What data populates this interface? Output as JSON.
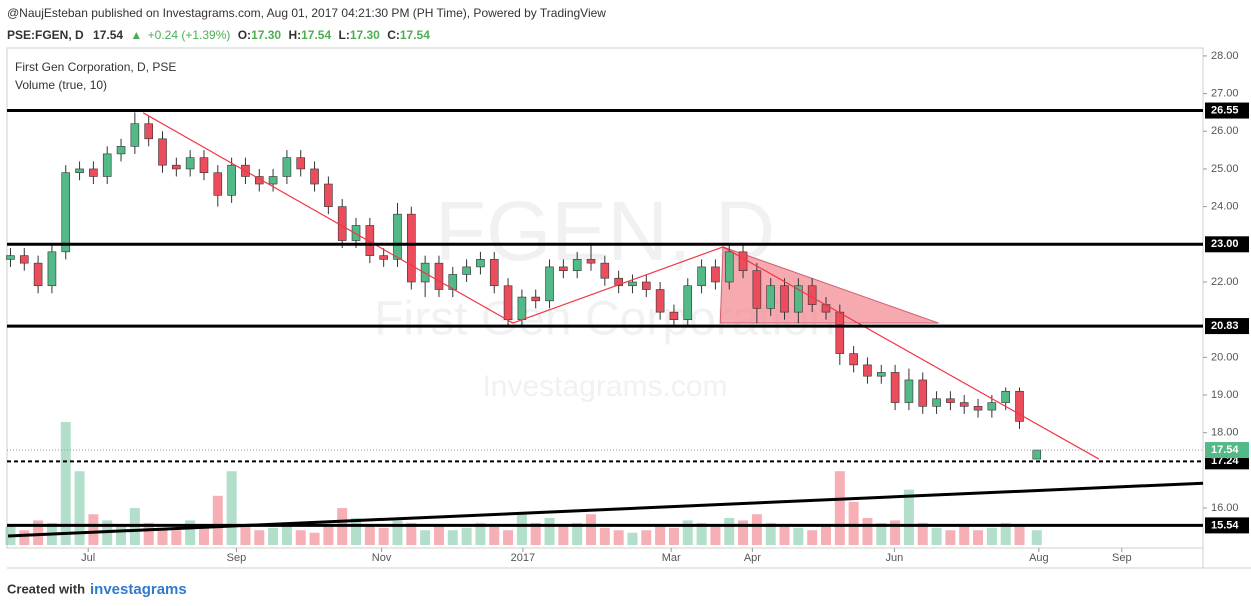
{
  "header": {
    "byline": "@NaujEsteban published on Investagrams.com, Aug 01, 2017 04:21:30 PM (PH Time), Powered by TradingView",
    "symbol": "PSE:FGEN, D",
    "last": "17.54",
    "arrow": "▲",
    "change": "+0.24 (+1.39%)",
    "ohlc": [
      {
        "label": "O:",
        "value": "17.30"
      },
      {
        "label": "H:",
        "value": "17.54"
      },
      {
        "label": "L:",
        "value": "17.30"
      },
      {
        "label": "C:",
        "value": "17.54"
      }
    ]
  },
  "chart_data": {
    "type": "candlestick",
    "legend": [
      "First Gen Corporation, D, PSE",
      "Volume (true, 10)"
    ],
    "watermark": {
      "symbol": "FGEN, D",
      "name": "First Gen Corporation",
      "site": "Investagrams.com"
    },
    "up_color": "#53b987",
    "down_color": "#eb4d5c",
    "candles": {
      "x": [
        1,
        5,
        9,
        13,
        17,
        21,
        25,
        29,
        33,
        37,
        41,
        45,
        49,
        53,
        57,
        61,
        65,
        69,
        73,
        77,
        81,
        85,
        89,
        93,
        97,
        101,
        105,
        109,
        113,
        117,
        121,
        125,
        129,
        133,
        137,
        141,
        145,
        149,
        153,
        157,
        161,
        165,
        169,
        173,
        177,
        181,
        185,
        189,
        193,
        197,
        201,
        205,
        209,
        213,
        217,
        221,
        225,
        229,
        233,
        237,
        241,
        245,
        249,
        253,
        257,
        261,
        265,
        269,
        273,
        277,
        281,
        285,
        289,
        293,
        298
      ],
      "open": [
        22.6,
        22.7,
        22.5,
        21.9,
        22.8,
        24.9,
        25.0,
        24.8,
        25.4,
        25.6,
        26.2,
        25.8,
        25.1,
        25.0,
        25.3,
        24.9,
        24.3,
        25.1,
        24.8,
        24.6,
        24.8,
        25.3,
        25.0,
        24.6,
        24.0,
        23.1,
        23.5,
        22.7,
        22.6,
        23.8,
        22.0,
        22.5,
        21.8,
        22.2,
        22.4,
        22.6,
        21.9,
        21.0,
        21.6,
        21.5,
        22.4,
        22.3,
        22.6,
        22.5,
        22.1,
        21.9,
        22.0,
        21.8,
        21.2,
        21.0,
        21.9,
        22.4,
        22.0,
        22.8,
        22.3,
        21.3,
        21.9,
        21.2,
        21.9,
        21.4,
        21.2,
        20.1,
        19.8,
        19.5,
        19.6,
        18.8,
        19.4,
        18.7,
        18.9,
        18.8,
        18.7,
        18.6,
        18.8,
        19.1,
        17.3
      ],
      "high": [
        22.9,
        22.9,
        22.7,
        23.0,
        25.1,
        25.2,
        25.2,
        25.6,
        25.8,
        26.5,
        26.4,
        26.0,
        25.3,
        25.5,
        25.5,
        25.1,
        25.3,
        25.3,
        25.0,
        25.0,
        25.5,
        25.5,
        25.2,
        24.8,
        24.2,
        23.7,
        23.7,
        22.9,
        24.1,
        24.0,
        22.7,
        22.7,
        22.4,
        22.6,
        22.8,
        22.8,
        22.1,
        21.8,
        21.8,
        22.6,
        22.6,
        22.8,
        23.0,
        22.7,
        22.3,
        22.2,
        22.2,
        22.0,
        21.4,
        22.1,
        22.6,
        22.6,
        23.0,
        23.0,
        22.5,
        22.1,
        22.1,
        22.1,
        22.1,
        21.6,
        21.4,
        20.3,
        20.0,
        19.8,
        19.8,
        19.7,
        19.6,
        19.1,
        19.1,
        19.0,
        18.9,
        19.0,
        19.2,
        19.2,
        17.54
      ],
      "low": [
        22.4,
        22.3,
        21.7,
        21.7,
        22.6,
        24.7,
        24.6,
        24.6,
        25.2,
        25.4,
        25.6,
        24.9,
        24.8,
        24.8,
        24.7,
        24.0,
        24.1,
        24.6,
        24.4,
        24.4,
        24.6,
        24.8,
        24.4,
        23.8,
        22.9,
        22.9,
        22.5,
        22.4,
        22.4,
        21.8,
        21.6,
        21.6,
        21.6,
        22.0,
        22.2,
        21.7,
        20.8,
        20.8,
        21.3,
        21.3,
        22.1,
        22.1,
        22.3,
        21.9,
        21.7,
        21.7,
        21.6,
        21.0,
        20.8,
        20.8,
        21.7,
        21.8,
        21.8,
        22.1,
        20.9,
        21.1,
        21.0,
        20.9,
        21.2,
        21.0,
        19.8,
        19.6,
        19.3,
        19.3,
        18.6,
        18.6,
        18.5,
        18.5,
        18.6,
        18.5,
        18.4,
        18.4,
        18.6,
        18.1,
        17.3
      ],
      "close": [
        22.7,
        22.5,
        21.9,
        22.8,
        24.9,
        25.0,
        24.8,
        25.4,
        25.6,
        26.2,
        25.8,
        25.1,
        25.0,
        25.3,
        24.9,
        24.3,
        25.1,
        24.8,
        24.6,
        24.8,
        25.3,
        25.0,
        24.6,
        24.0,
        23.1,
        23.5,
        22.7,
        22.6,
        23.8,
        22.0,
        22.5,
        21.8,
        22.2,
        22.4,
        22.6,
        21.9,
        21.0,
        21.6,
        21.5,
        22.4,
        22.3,
        22.6,
        22.5,
        22.1,
        21.9,
        22.0,
        21.8,
        21.2,
        21.0,
        21.9,
        22.4,
        22.0,
        22.8,
        22.3,
        21.3,
        21.9,
        21.2,
        21.9,
        21.4,
        21.2,
        20.1,
        19.8,
        19.5,
        19.6,
        18.8,
        19.4,
        18.7,
        18.9,
        18.8,
        18.7,
        18.6,
        18.8,
        19.1,
        18.3,
        17.54
      ],
      "volume": [
        15,
        12,
        20,
        18,
        100,
        60,
        25,
        20,
        15,
        30,
        18,
        14,
        12,
        20,
        15,
        40,
        60,
        15,
        12,
        14,
        18,
        12,
        10,
        15,
        30,
        22,
        15,
        14,
        20,
        18,
        12,
        15,
        12,
        14,
        18,
        15,
        12,
        25,
        18,
        22,
        15,
        18,
        25,
        14,
        12,
        10,
        12,
        15,
        14,
        20,
        18,
        15,
        22,
        20,
        25,
        18,
        15,
        14,
        12,
        15,
        60,
        35,
        22,
        18,
        20,
        45,
        18,
        14,
        12,
        15,
        12,
        14,
        18,
        15,
        12
      ]
    },
    "xlim": [
      0,
      346.1
    ],
    "ylim": [
      14.94,
      28.21
    ],
    "xticks": [
      {
        "value": 23.5,
        "label": "Jul"
      },
      {
        "value": 66.4,
        "label": "Sep"
      },
      {
        "value": 108.4,
        "label": "Nov"
      },
      {
        "value": 149.3,
        "label": "2017"
      },
      {
        "value": 192.2,
        "label": "Mar"
      },
      {
        "value": 215.7,
        "label": "Apr"
      },
      {
        "value": 256.8,
        "label": "Jun"
      },
      {
        "value": 298.6,
        "label": "Aug"
      },
      {
        "value": 322.6,
        "label": "Sep"
      }
    ],
    "yticks": [
      {
        "value": 28,
        "label": "28.00"
      },
      {
        "value": 27,
        "label": "27.00"
      },
      {
        "value": 26,
        "label": "26.00"
      },
      {
        "value": 25,
        "label": "25.00"
      },
      {
        "value": 24,
        "label": "24.00"
      },
      {
        "value": 22,
        "label": "22.00"
      },
      {
        "value": 20,
        "label": "20.00"
      },
      {
        "value": 19,
        "label": "19.00"
      },
      {
        "value": 18,
        "label": "18.00"
      },
      {
        "value": 16,
        "label": "16.00"
      }
    ],
    "levels": [
      {
        "value": 26.55,
        "style": "solid"
      },
      {
        "value": 23,
        "label": "23.00",
        "style": "solid"
      },
      {
        "value": 20.83,
        "style": "solid"
      },
      {
        "value": 17.24,
        "style": "dashed"
      },
      {
        "value": 15.54,
        "style": "solid"
      }
    ],
    "last_price": 17.54,
    "trendlines": [
      {
        "x": [
          39.4,
          146.4
        ],
        "y": [
          26.49,
          20.91
        ],
        "color": "#f23645"
      },
      {
        "x": [
          146.4,
          207.2
        ],
        "y": [
          20.91,
          22.93
        ],
        "color": "#f23645"
      },
      {
        "x": [
          207.2,
          316
        ],
        "y": [
          22.93,
          17.3
        ],
        "color": "#f23645"
      },
      {
        "x": [
          0.3,
          346.1
        ],
        "y": [
          15.26,
          16.66
        ],
        "color": "#000000"
      }
    ],
    "shapes": [
      {
        "x": [
          207.2,
          206.4,
          269.6
        ],
        "y": [
          22.93,
          20.91,
          20.91
        ],
        "color": "#f4858e"
      }
    ]
  },
  "footer": {
    "prefix": "Created with",
    "brand": "investagrams"
  }
}
